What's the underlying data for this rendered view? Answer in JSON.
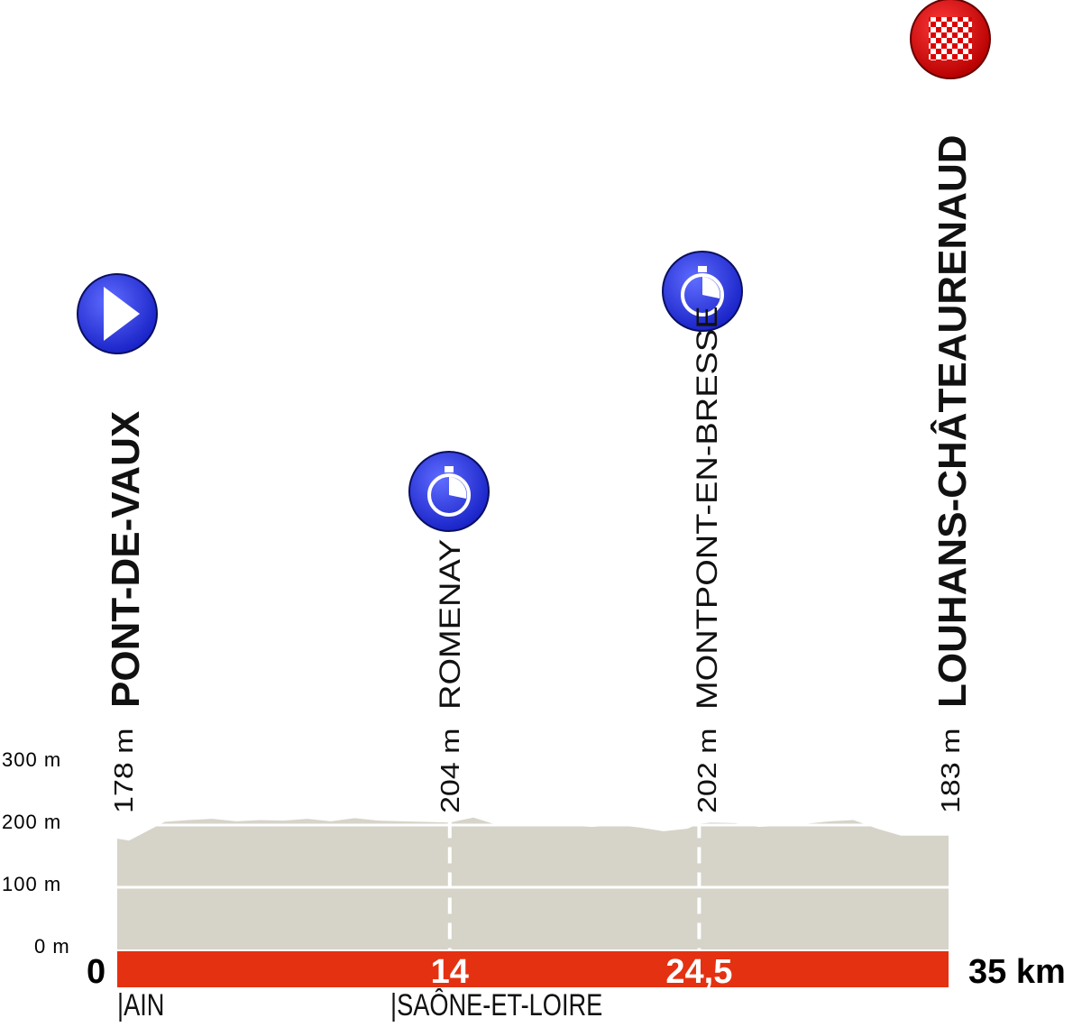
{
  "chart_data": {
    "type": "area",
    "xlabel": "",
    "ylabel": "",
    "xunit": "km",
    "xlim": [
      0,
      35
    ],
    "ylim": [
      0,
      300
    ],
    "yticks": [
      "0 m",
      "100 m",
      "200 m",
      "300 m"
    ],
    "ytick_values": [
      0,
      100,
      200,
      300
    ],
    "grid": true,
    "fill_color": "#d6d3c8",
    "bar_color": "#e43111",
    "profile": {
      "x": [
        0,
        0.5,
        1,
        2,
        3,
        4,
        5,
        6,
        7,
        8,
        9,
        10,
        11,
        12,
        13,
        14,
        15,
        16,
        17,
        18,
        19,
        20,
        21,
        22,
        23,
        24,
        24.5,
        25,
        26,
        27,
        28,
        29,
        30,
        31,
        32,
        33,
        34,
        35
      ],
      "y": [
        178,
        175,
        185,
        205,
        208,
        210,
        206,
        208,
        207,
        210,
        206,
        211,
        207,
        206,
        205,
        204,
        212,
        200,
        200,
        198,
        199,
        197,
        200,
        196,
        190,
        194,
        202,
        204,
        203,
        197,
        199,
        202,
        206,
        208,
        194,
        183,
        183,
        183
      ]
    },
    "km_markers": [
      {
        "km": 0,
        "label": "0"
      },
      {
        "km": 14,
        "label": "14"
      },
      {
        "km": 24.5,
        "label": "24,5"
      },
      {
        "km": 35,
        "label": "35 km"
      }
    ],
    "places": [
      {
        "km": 0,
        "name": "PONT-DE-VAUX",
        "altitude": "178 m",
        "icon": "start-play-icon",
        "style": "bold"
      },
      {
        "km": 14,
        "name": "ROMENAY",
        "altitude": "204 m",
        "icon": "stopwatch-icon",
        "style": "thin"
      },
      {
        "km": 24.5,
        "name": "MONTPONT-EN-BRESSE",
        "altitude": "202 m",
        "icon": "stopwatch-icon",
        "style": "thin"
      },
      {
        "km": 35,
        "name": "LOUHANS-CHÂTEAURENAUD",
        "altitude": "183 m",
        "icon": "finish-checkered-flag-icon",
        "style": "bold"
      }
    ],
    "departments": [
      {
        "km": 0,
        "label": "|AIN"
      },
      {
        "km": 11.5,
        "label": "|SAÔNE-ET-LOIRE"
      }
    ],
    "colors": {
      "icon_blue": "#2a3cf0",
      "finish_red": "#d40000"
    }
  }
}
